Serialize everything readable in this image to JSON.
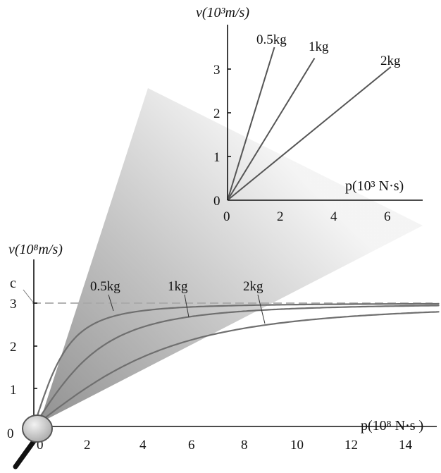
{
  "chart_data": [
    {
      "type": "line",
      "description_role": "inset (magnified, low-momentum region)",
      "xlabel": "p(10³ N·s)",
      "ylabel": "v(10³m/s)",
      "xlim": [
        0,
        7.3
      ],
      "ylim": [
        0,
        3.6
      ],
      "x_ticks": [
        "0",
        "2",
        "4",
        "6"
      ],
      "y_ticks": [
        "0",
        "1",
        "2",
        "3"
      ],
      "series": [
        {
          "name": "0.5kg",
          "mass_kg": 0.5,
          "x": [
            0,
            1.75
          ],
          "y": [
            0,
            3.5
          ]
        },
        {
          "name": "1kg",
          "mass_kg": 1,
          "x": [
            0,
            3.25
          ],
          "y": [
            0,
            3.25
          ]
        },
        {
          "name": "2kg",
          "mass_kg": 2,
          "x": [
            0,
            6.1
          ],
          "y": [
            0,
            3.05
          ]
        }
      ]
    },
    {
      "type": "line",
      "description_role": "main (relativistic velocity vs momentum)",
      "xlabel": "p(10⁸ N·s )",
      "ylabel": "v(10⁸m/s)",
      "xlim": [
        0,
        15.2
      ],
      "ylim": [
        0,
        3.3
      ],
      "x_ticks": [
        "0",
        "2",
        "4",
        "6",
        "8",
        "10",
        "12",
        "14"
      ],
      "y_ticks": [
        "0",
        "1",
        "2",
        "3"
      ],
      "speed_of_light": {
        "label": "c",
        "value": 3
      },
      "series": [
        {
          "name": "0.5kg",
          "mass_kg": 0.5
        },
        {
          "name": "1kg",
          "mass_kg": 1
        },
        {
          "name": "2kg",
          "mass_kg": 2
        }
      ]
    }
  ]
}
